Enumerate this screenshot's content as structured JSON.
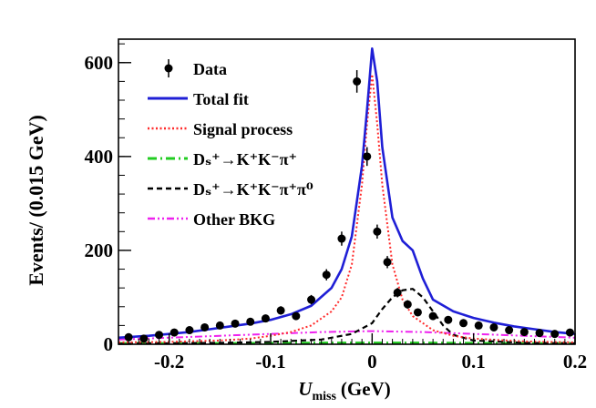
{
  "chart_data": {
    "type": "line",
    "title": "",
    "xlabel": "U",
    "xlabel_sub": "miss",
    "xlabel_unit": "(GeV)",
    "ylabel": "Events/ (0.015 GeV)",
    "xlim": [
      -0.25,
      0.2
    ],
    "ylim": [
      0,
      650
    ],
    "x_ticks": [
      -0.2,
      -0.1,
      0,
      0.1,
      0.2
    ],
    "x_tick_labels": [
      "-0.2",
      "-0.1",
      "0",
      "0.1",
      "0.2"
    ],
    "y_ticks": [
      0,
      200,
      400,
      600
    ],
    "y_tick_labels": [
      "0",
      "200",
      "400",
      "600"
    ],
    "legend_position": "top-left",
    "legend": [
      {
        "key": "data",
        "label": "Data",
        "style": "marker",
        "color": "#000000"
      },
      {
        "key": "total",
        "label": "Total fit",
        "style": "solid",
        "color": "#1f1fd6"
      },
      {
        "key": "signal",
        "label": "Signal process",
        "style": "dotted",
        "color": "#ff2a2a"
      },
      {
        "key": "kkpi",
        "label": "Dₛ⁺→K⁺K⁻π⁺",
        "style": "dashdot",
        "color": "#22cc22"
      },
      {
        "key": "kkpipi0",
        "label": "Dₛ⁺→K⁺K⁻π⁺π⁰",
        "style": "dashed",
        "color": "#000000"
      },
      {
        "key": "other",
        "label": "Other BKG",
        "style": "dashdotdot",
        "color": "#ee22ee"
      }
    ],
    "data_points": {
      "x": [
        -0.24,
        -0.225,
        -0.21,
        -0.195,
        -0.18,
        -0.165,
        -0.15,
        -0.135,
        -0.12,
        -0.105,
        -0.09,
        -0.075,
        -0.06,
        -0.045,
        -0.03,
        -0.015,
        -0.005,
        0.005,
        0.015,
        0.025,
        0.035,
        0.045,
        0.06,
        0.075,
        0.09,
        0.105,
        0.12,
        0.135,
        0.15,
        0.165,
        0.18,
        0.195
      ],
      "y": [
        15,
        12,
        20,
        25,
        30,
        36,
        40,
        44,
        48,
        55,
        72,
        60,
        95,
        148,
        225,
        560,
        400,
        240,
        175,
        110,
        85,
        68,
        60,
        52,
        45,
        40,
        36,
        30,
        26,
        24,
        22,
        25
      ],
      "err": [
        4,
        4,
        5,
        5,
        6,
        6,
        6,
        7,
        7,
        7,
        9,
        8,
        10,
        12,
        15,
        24,
        20,
        15,
        13,
        10,
        9,
        8,
        8,
        7,
        7,
        6,
        6,
        6,
        5,
        5,
        5,
        5
      ]
    },
    "series": [
      {
        "name": "Total fit",
        "key": "total",
        "x": [
          -0.25,
          -0.22,
          -0.2,
          -0.18,
          -0.16,
          -0.14,
          -0.12,
          -0.1,
          -0.08,
          -0.06,
          -0.04,
          -0.03,
          -0.02,
          -0.01,
          -0.005,
          0,
          0.005,
          0.01,
          0.02,
          0.03,
          0.04,
          0.05,
          0.06,
          0.08,
          0.1,
          0.12,
          0.14,
          0.16,
          0.18,
          0.2
        ],
        "y": [
          14,
          18,
          22,
          26,
          32,
          38,
          44,
          52,
          64,
          82,
          120,
          160,
          230,
          380,
          500,
          630,
          560,
          420,
          270,
          220,
          200,
          140,
          95,
          70,
          56,
          46,
          38,
          32,
          26,
          22
        ]
      },
      {
        "name": "Signal process",
        "key": "signal",
        "x": [
          -0.25,
          -0.2,
          -0.15,
          -0.12,
          -0.1,
          -0.08,
          -0.06,
          -0.04,
          -0.03,
          -0.02,
          -0.01,
          -0.005,
          0,
          0.005,
          0.01,
          0.02,
          0.03,
          0.04,
          0.06,
          0.08,
          0.1,
          0.15,
          0.2
        ],
        "y": [
          4,
          5,
          8,
          12,
          18,
          26,
          40,
          70,
          100,
          170,
          340,
          470,
          575,
          470,
          340,
          170,
          95,
          60,
          30,
          18,
          12,
          6,
          4
        ]
      },
      {
        "name": "Ds->KKpi",
        "key": "kkpi",
        "x": [
          -0.25,
          -0.15,
          -0.05,
          0,
          0.05,
          0.15,
          0.2
        ],
        "y": [
          2,
          2,
          3,
          3,
          3,
          2,
          2
        ]
      },
      {
        "name": "Ds->KKpipi0",
        "key": "kkpipi0",
        "x": [
          -0.25,
          -0.2,
          -0.15,
          -0.1,
          -0.05,
          -0.02,
          0,
          0.01,
          0.02,
          0.03,
          0.04,
          0.05,
          0.06,
          0.07,
          0.08,
          0.1,
          0.15,
          0.2
        ],
        "y": [
          1,
          2,
          3,
          5,
          10,
          22,
          45,
          75,
          100,
          115,
          118,
          100,
          70,
          40,
          20,
          8,
          3,
          2
        ]
      },
      {
        "name": "Other BKG",
        "key": "other",
        "x": [
          -0.25,
          -0.2,
          -0.15,
          -0.1,
          -0.05,
          0,
          0.05,
          0.1,
          0.15,
          0.2
        ],
        "y": [
          10,
          14,
          18,
          22,
          26,
          28,
          26,
          22,
          18,
          14
        ]
      }
    ]
  }
}
